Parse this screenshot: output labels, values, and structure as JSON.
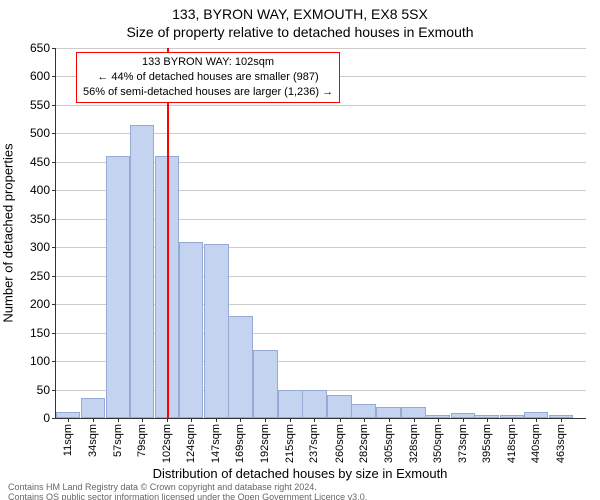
{
  "chart": {
    "type": "histogram",
    "title_line1": "133, BYRON WAY, EXMOUTH, EX8 5SX",
    "title_line2": "Size of property relative to detached houses in Exmouth",
    "title_fontsize": 14,
    "xlabel": "Distribution of detached houses by size in Exmouth",
    "ylabel": "Number of detached properties",
    "label_fontsize": 13,
    "tick_fontsize": 12,
    "xlim": [
      0,
      486
    ],
    "ylim": [
      0,
      650
    ],
    "ytick_step": 50,
    "background_color": "#ffffff",
    "grid_color": "#cccccc",
    "axis_color": "#333333",
    "bar_fill": "#c3d3f0",
    "bar_border": "#95abd6",
    "bar_width": 22.5,
    "categories": [
      "11sqm",
      "34sqm",
      "57sqm",
      "79sqm",
      "102sqm",
      "124sqm",
      "147sqm",
      "169sqm",
      "192sqm",
      "215sqm",
      "237sqm",
      "260sqm",
      "282sqm",
      "305sqm",
      "328sqm",
      "350sqm",
      "373sqm",
      "395sqm",
      "418sqm",
      "440sqm",
      "463sqm"
    ],
    "x_positions": [
      11,
      34,
      57,
      79,
      102,
      124,
      147,
      169,
      192,
      215,
      237,
      260,
      282,
      305,
      328,
      350,
      373,
      395,
      418,
      440,
      463
    ],
    "values": [
      10,
      35,
      460,
      515,
      460,
      310,
      305,
      180,
      120,
      50,
      50,
      40,
      25,
      20,
      20,
      5,
      8,
      5,
      5,
      10,
      5
    ],
    "marker": {
      "x": 102,
      "color": "#ff0000",
      "callout_bg": "#ffffff",
      "callout_border": "#ff0000",
      "lines": [
        "133 BYRON WAY: 102sqm",
        "← 44% of detached houses are smaller (987)",
        "56% of semi-detached houses are larger (1,236) →"
      ]
    }
  },
  "footer": {
    "line1": "Contains HM Land Registry data © Crown copyright and database right 2024.",
    "line2": "Contains OS public sector information licensed under the Open Government Licence v3.0.",
    "color": "#666666",
    "fontsize": 9
  }
}
